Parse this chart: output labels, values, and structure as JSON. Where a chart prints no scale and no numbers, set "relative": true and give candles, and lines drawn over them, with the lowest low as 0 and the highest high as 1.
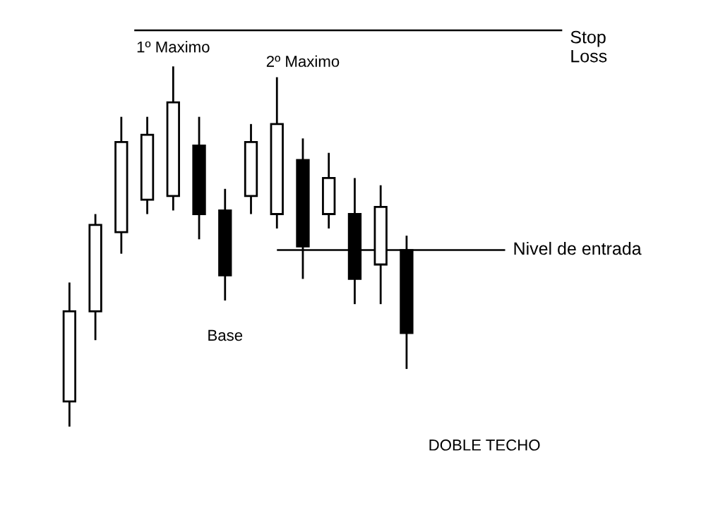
{
  "chart_data": {
    "type": "candlestick",
    "relative": true,
    "categories": [
      null,
      null,
      null,
      null,
      null,
      null,
      null,
      null,
      null,
      null,
      null,
      null,
      null,
      null
    ],
    "ohlc": [
      [
        0.07,
        0.4,
        0,
        0.32
      ],
      [
        0.32,
        0.59,
        0.24,
        0.56
      ],
      [
        0.54,
        0.86,
        0.48,
        0.79
      ],
      [
        0.63,
        0.86,
        0.59,
        0.81
      ],
      [
        0.64,
        1,
        0.6,
        0.9
      ],
      [
        0.78,
        0.86,
        0.52,
        0.59
      ],
      [
        0.6,
        0.66,
        0.35,
        0.42
      ],
      [
        0.64,
        0.84,
        0.59,
        0.79
      ],
      [
        0.59,
        0.97,
        0.55,
        0.84
      ],
      [
        0.74,
        0.8,
        0.41,
        0.5
      ],
      [
        0.59,
        0.76,
        0.55,
        0.69
      ],
      [
        0.59,
        0.69,
        0.34,
        0.41
      ],
      [
        0.45,
        0.67,
        0.34,
        0.61
      ],
      [
        0.49,
        0.53,
        0.16,
        0.26
      ]
    ],
    "ref_lines": [
      {
        "axis": "y",
        "value": 1.1,
        "label": "Stop\nLoss",
        "color": "#000000"
      },
      {
        "axis": "y",
        "value": 0.49,
        "label": "Nivel de entrada",
        "color": "#000000"
      }
    ],
    "annotations": [
      "1º Maximo",
      "2º Maximo",
      "Base",
      "DOBLE TECHO"
    ]
  }
}
